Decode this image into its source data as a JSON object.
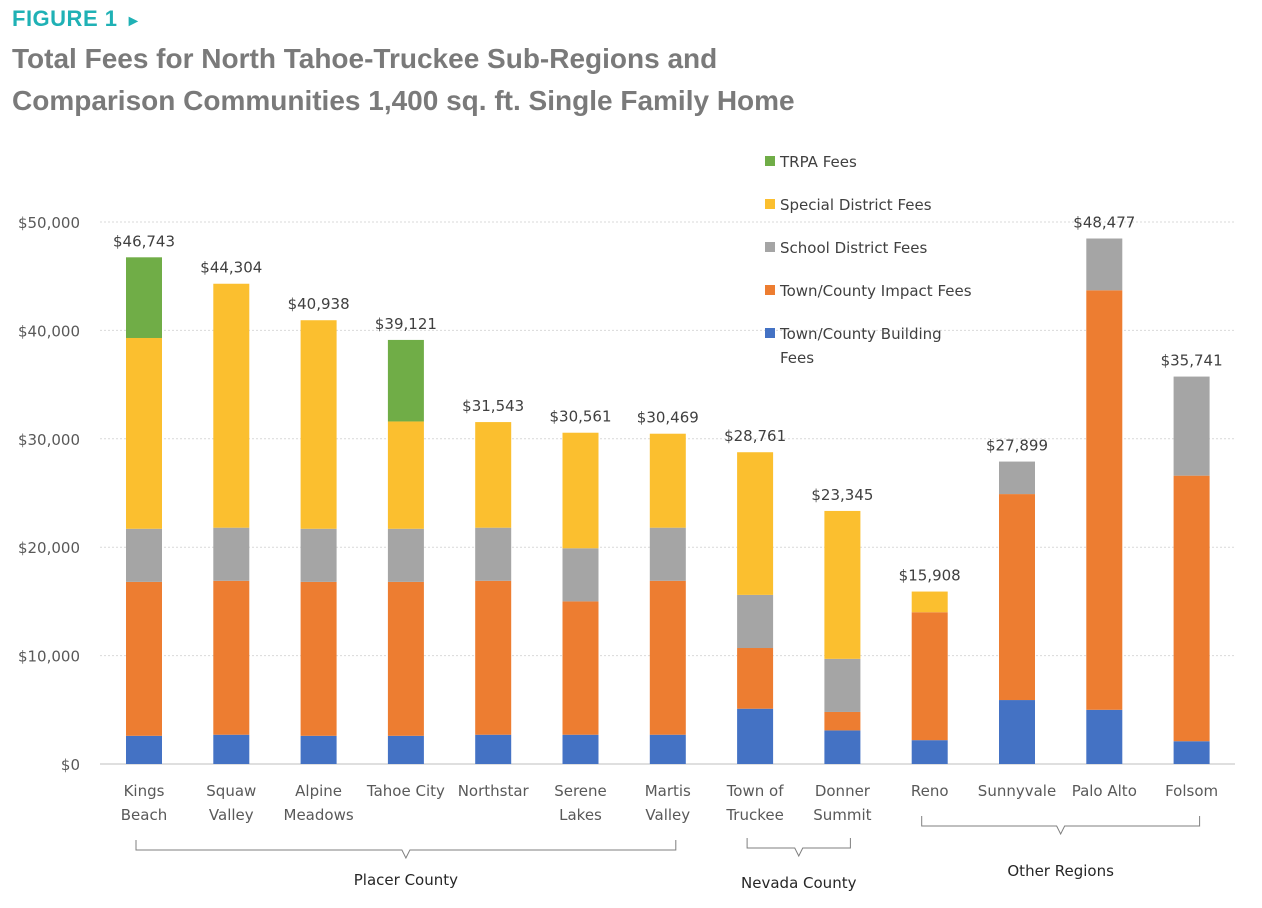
{
  "figure": {
    "label": "FIGURE 1",
    "arrow_glyph": "►"
  },
  "title_line1": "Total Fees for North Tahoe-Truckee Sub-Regions and",
  "title_line2": "Comparison Communities 1,400 sq. ft. Single Family Home",
  "chart_data": {
    "type": "bar",
    "stacked": true,
    "ylim": [
      0,
      50000
    ],
    "yticks": [
      0,
      10000,
      20000,
      30000,
      40000,
      50000
    ],
    "ytick_labels": [
      "$0",
      "$10,000",
      "$20,000",
      "$30,000",
      "$40,000",
      "$50,000"
    ],
    "grid": true,
    "legend_position": "top-right",
    "categories": [
      [
        "Kings",
        "Beach"
      ],
      [
        "Squaw",
        "Valley"
      ],
      [
        "Alpine",
        "Meadows"
      ],
      [
        "Tahoe City"
      ],
      [
        "Northstar"
      ],
      [
        "Serene",
        "Lakes"
      ],
      [
        "Martis",
        "Valley"
      ],
      [
        "Town of",
        "Truckee"
      ],
      [
        "Donner",
        "Summit"
      ],
      [
        "Reno"
      ],
      [
        "Sunnyvale"
      ],
      [
        "Palo Alto"
      ],
      [
        "Folsom"
      ]
    ],
    "totals": [
      "$46,743",
      "$44,304",
      "$40,938",
      "$39,121",
      "$31,543",
      "$30,561",
      "$30,469",
      "$28,761",
      "$23,345",
      "$15,908",
      "$27,899",
      "$48,477",
      "$35,741"
    ],
    "series": [
      {
        "name": "Town/County Building Fees",
        "color": "#4472c4",
        "values": [
          2600,
          2700,
          2600,
          2600,
          2700,
          2700,
          2700,
          5100,
          3100,
          2200,
          5900,
          5000,
          2100
        ]
      },
      {
        "name": "Town/County Impact Fees",
        "color": "#ed7d31",
        "values": [
          14200,
          14200,
          14200,
          14200,
          14200,
          12300,
          14200,
          5600,
          1700,
          11800,
          19000,
          38700,
          24500
        ]
      },
      {
        "name": "School District Fees",
        "color": "#a5a5a5",
        "values": [
          4900,
          4900,
          4900,
          4900,
          4900,
          4900,
          4900,
          4900,
          4900,
          0,
          3000,
          4777,
          9141
        ]
      },
      {
        "name": "Special District Fees",
        "color": "#fbbf2f",
        "values": [
          17600,
          22504,
          19238,
          9900,
          9743,
          10661,
          8669,
          13161,
          13645,
          1908,
          0,
          0,
          0
        ]
      },
      {
        "name": "TRPA Fees",
        "color": "#70ad47",
        "values": [
          7443,
          0,
          0,
          7521,
          0,
          0,
          0,
          0,
          0,
          0,
          0,
          0,
          0
        ]
      }
    ],
    "legend_order": [
      "TRPA Fees",
      "Special District Fees",
      "School District Fees",
      "Town/County Impact Fees",
      "Town/County Building Fees"
    ],
    "groups": [
      {
        "label": "Placer County",
        "from": 0,
        "to": 6
      },
      {
        "label": "Nevada County",
        "from": 7,
        "to": 8
      },
      {
        "label": "Other Regions",
        "from": 9,
        "to": 12
      }
    ]
  }
}
